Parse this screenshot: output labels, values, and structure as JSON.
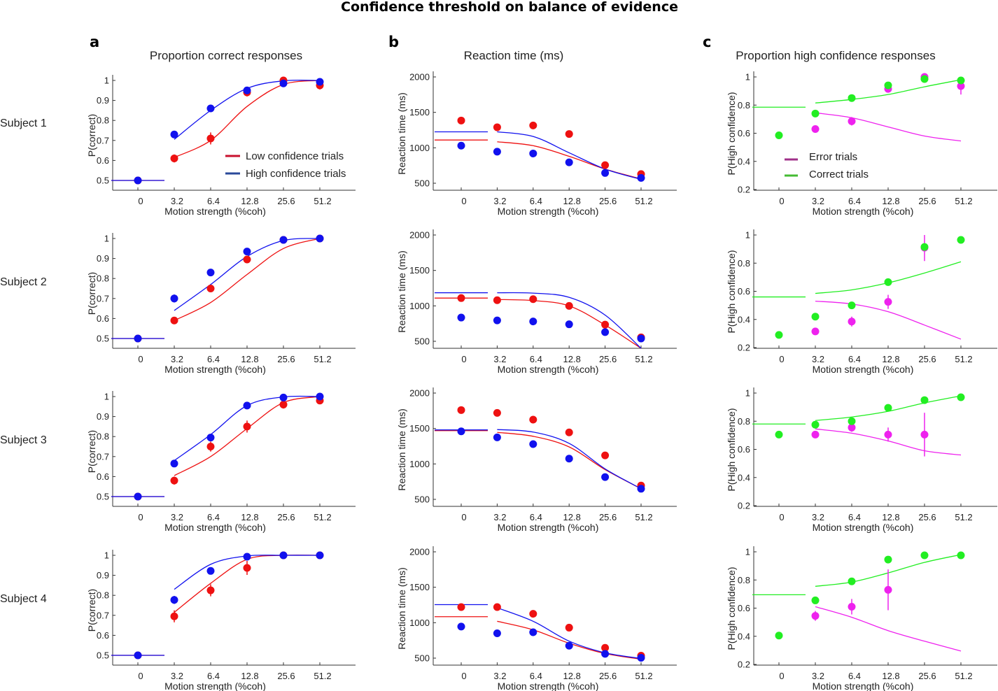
{
  "figure": {
    "title": "Confidence threshold on balance of evidence",
    "columns": [
      {
        "letter": "a",
        "title": "Proportion correct responses"
      },
      {
        "letter": "b",
        "title": "Reaction time (ms)"
      },
      {
        "letter": "c",
        "title": "Proportion high confidence responses"
      }
    ],
    "subjects": [
      "Subject 1",
      "Subject 2",
      "Subject 3",
      "Subject 4"
    ],
    "colors": {
      "low_conf": "#ee1111",
      "high_conf": "#1111ee",
      "low_conf_legend": "#c8102e",
      "high_conf_legend": "#2a4a9a",
      "error": "#ee22ee",
      "correct": "#22ee22",
      "error_legend": "#a0308a",
      "correct_legend": "#44bb33",
      "axis": "#333333"
    }
  },
  "chart_data": [
    {
      "type": "scatter",
      "column": "a",
      "title": "Proportion correct responses",
      "xlabel": "Motion strength (%coh)",
      "ylabel": "P(correct)",
      "categories": [
        "0",
        "3.2",
        "6.4",
        "12.8",
        "25.6",
        "51.2"
      ],
      "ylim": [
        0.45,
        1.02
      ],
      "yticks": [
        "0.5",
        "0.6",
        "0.7",
        "0.8",
        "0.9",
        "1"
      ],
      "ytick_values": [
        0.5,
        0.6,
        0.7,
        0.8,
        0.9,
        1.0
      ],
      "legend": [
        "Low confidence trials",
        "High confidence trials"
      ],
      "legend_placement": "lower-right (Subject 1 only)",
      "subjects": [
        {
          "name": "Subject 1",
          "low": {
            "points": [
              0.5,
              0.61,
              0.71,
              0.94,
              1.0,
              0.975
            ],
            "err": [
              0,
              0.02,
              0.03,
              0.02,
              0,
              0.02
            ],
            "fit0": 0.5,
            "fit": [
              0.615,
              0.7,
              0.87,
              0.98,
              1.0
            ]
          },
          "high": {
            "points": [
              0.5,
              0.73,
              0.86,
              0.95,
              0.985,
              0.993
            ],
            "err": [
              0,
              0.01,
              0.01,
              0.01,
              0.005,
              0.005
            ],
            "fit0": 0.5,
            "fit": [
              0.705,
              0.85,
              0.96,
              0.998,
              1.0
            ]
          }
        },
        {
          "name": "Subject 2",
          "low": {
            "points": [
              0.5,
              0.59,
              0.75,
              0.895,
              0.993,
              1.0
            ],
            "err": [
              0,
              0.01,
              0.01,
              0.01,
              0.005,
              0
            ],
            "fit0": 0.5,
            "fit": [
              0.59,
              0.68,
              0.82,
              0.95,
              1.0
            ]
          },
          "high": {
            "points": [
              0.5,
              0.7,
              0.83,
              0.935,
              0.993,
              1.0
            ],
            "err": [
              0,
              0.02,
              0.01,
              0.01,
              0.005,
              0
            ],
            "fit0": 0.5,
            "fit": [
              0.64,
              0.77,
              0.91,
              0.99,
              1.0
            ]
          }
        },
        {
          "name": "Subject 3",
          "low": {
            "points": [
              0.5,
              0.58,
              0.75,
              0.85,
              0.96,
              0.98
            ],
            "err": [
              0,
              0.02,
              0.025,
              0.03,
              0.02,
              0.015
            ],
            "fit0": 0.5,
            "fit": [
              0.605,
              0.7,
              0.84,
              0.97,
              1.0
            ]
          },
          "high": {
            "points": [
              0.5,
              0.665,
              0.795,
              0.955,
              0.995,
              1.0
            ],
            "err": [
              0,
              0.01,
              0.01,
              0.005,
              0.005,
              0
            ],
            "fit0": 0.5,
            "fit": [
              0.68,
              0.81,
              0.955,
              0.998,
              1.0
            ]
          }
        },
        {
          "name": "Subject 4",
          "low": {
            "points": [
              0.5,
              0.695,
              0.825,
              0.937,
              1.0,
              1.0
            ],
            "err": [
              0,
              0.03,
              0.03,
              0.035,
              0,
              0
            ],
            "fit0": 0.5,
            "fit": [
              0.715,
              0.86,
              0.98,
              1.0,
              1.0
            ]
          },
          "high": {
            "points": [
              0.5,
              0.777,
              0.922,
              0.993,
              1.0,
              1.0
            ],
            "err": [
              0,
              0.02,
              0.01,
              0.005,
              0,
              0
            ],
            "fit0": 0.5,
            "fit": [
              0.83,
              0.955,
              0.997,
              1.0,
              1.0
            ]
          }
        }
      ]
    },
    {
      "type": "scatter",
      "column": "b",
      "title": "Reaction time (ms)",
      "xlabel": "Motion strength (%coh)",
      "ylabel": "Reaction time (ms)",
      "categories": [
        "0",
        "3.2",
        "6.4",
        "12.8",
        "25.6",
        "51.2"
      ],
      "ylim": [
        400,
        2000
      ],
      "yticks": [
        "500",
        "1000",
        "1500",
        "2000"
      ],
      "ytick_values": [
        500,
        1000,
        1500,
        2000
      ],
      "legend": [
        "Low confidence trials",
        "High confidence trials"
      ],
      "subjects": [
        {
          "name": "Subject 1",
          "low": {
            "points": [
              1385,
              1290,
              1315,
              1195,
              755,
              630
            ],
            "err": [
              0,
              0,
              0,
              0,
              0,
              0
            ],
            "fit0": 1110,
            "fit": [
              1085,
              1030,
              880,
              700,
              560
            ]
          },
          "high": {
            "points": [
              1030,
              945,
              920,
              795,
              645,
              575
            ],
            "err": [
              0,
              0,
              0,
              0,
              0,
              0
            ],
            "fit0": 1225,
            "fit": [
              1225,
              1160,
              930,
              700,
              555
            ]
          }
        },
        {
          "name": "Subject 2",
          "low": {
            "points": [
              1110,
              1080,
              1095,
              1000,
              735,
              555
            ],
            "err": [
              0,
              0,
              0,
              0,
              0,
              0
            ],
            "fit0": 1110,
            "fit": [
              1090,
              1075,
              1000,
              730,
              300
            ]
          },
          "high": {
            "points": [
              835,
              795,
              780,
              740,
              630,
              540
            ],
            "err": [
              0,
              0,
              0,
              0,
              0,
              0
            ],
            "fit0": 1185,
            "fit": [
              1185,
              1180,
              1120,
              870,
              380
            ]
          }
        },
        {
          "name": "Subject 3",
          "low": {
            "points": [
              1760,
              1720,
              1625,
              1445,
              1120,
              695
            ],
            "err": [
              0,
              0,
              0,
              0,
              50,
              0
            ],
            "fit0": 1470,
            "fit": [
              1445,
              1390,
              1240,
              920,
              650
            ]
          },
          "high": {
            "points": [
              1460,
              1375,
              1280,
              1075,
              815,
              650
            ],
            "err": [
              0,
              0,
              0,
              0,
              0,
              0
            ],
            "fit0": 1480,
            "fit": [
              1485,
              1450,
              1290,
              930,
              650
            ]
          }
        },
        {
          "name": "Subject 4",
          "low": {
            "points": [
              1220,
              1220,
              1125,
              930,
              645,
              535
            ],
            "err": [
              0,
              0,
              0,
              0,
              0,
              0
            ],
            "fit0": 1085,
            "fit": [
              1020,
              900,
              710,
              565,
              485
            ]
          },
          "high": {
            "points": [
              945,
              850,
              865,
              675,
              560,
              505
            ],
            "err": [
              0,
              0,
              0,
              0,
              0,
              0
            ],
            "fit0": 1255,
            "fit": [
              1210,
              1020,
              740,
              575,
              495
            ]
          }
        }
      ]
    },
    {
      "type": "scatter",
      "column": "c",
      "title": "Proportion high confidence responses",
      "xlabel": "Motion strength (%coh)",
      "ylabel": "P(High confidence)",
      "categories": [
        "0",
        "3.2",
        "6.4",
        "12.8",
        "25.6",
        "51.2"
      ],
      "ylim": [
        0.2,
        1.0
      ],
      "yticks": [
        "0.2",
        "0.4",
        "0.6",
        "0.8",
        "1"
      ],
      "ytick_values": [
        0.2,
        0.4,
        0.6,
        0.8,
        1.0
      ],
      "legend": [
        "Error trials",
        "Correct trials"
      ],
      "legend_placement": "lower-left (Subject 1 only)",
      "subjects": [
        {
          "name": "Subject 1",
          "error": {
            "points": [
              null,
              0.63,
              0.685,
              0.915,
              1.0,
              0.935
            ],
            "err": [
              0,
              0.02,
              0.03,
              0.02,
              0,
              0.06
            ],
            "fit": [
              0.745,
              0.71,
              0.645,
              0.58,
              0.545
            ]
          },
          "correct": {
            "points": [
              0.585,
              0.74,
              0.85,
              0.94,
              0.985,
              0.975
            ],
            "err": [
              0,
              0,
              0,
              0,
              0,
              0
            ],
            "fit0": 0.785,
            "fit": [
              0.815,
              0.84,
              0.875,
              0.93,
              0.98
            ]
          }
        },
        {
          "name": "Subject 2",
          "error": {
            "points": [
              null,
              0.315,
              0.385,
              0.525,
              0.91,
              null
            ],
            "err": [
              0,
              0.01,
              0.035,
              0.05,
              0.095,
              0
            ],
            "fit": [
              0.53,
              0.51,
              0.455,
              0.36,
              0.26
            ]
          },
          "correct": {
            "points": [
              0.29,
              0.42,
              0.5,
              0.665,
              0.915,
              0.965
            ],
            "err": [
              0,
              0,
              0,
              0,
              0,
              0
            ],
            "fit0": 0.56,
            "fit": [
              0.585,
              0.61,
              0.66,
              0.73,
              0.81
            ]
          }
        },
        {
          "name": "Subject 3",
          "error": {
            "points": [
              null,
              0.705,
              0.755,
              0.705,
              0.705,
              null
            ],
            "err": [
              0,
              0.02,
              0.03,
              0.05,
              0.155,
              0
            ],
            "fit": [
              0.745,
              0.715,
              0.66,
              0.59,
              0.56
            ]
          },
          "correct": {
            "points": [
              0.705,
              0.775,
              0.8,
              0.895,
              0.95,
              0.97
            ],
            "err": [
              0,
              0,
              0,
              0,
              0,
              0
            ],
            "fit0": 0.78,
            "fit": [
              0.805,
              0.83,
              0.87,
              0.93,
              0.98
            ]
          }
        },
        {
          "name": "Subject 4",
          "error": {
            "points": [
              null,
              0.545,
              0.61,
              0.73,
              null,
              null
            ],
            "err": [
              0,
              0.035,
              0.055,
              0.145,
              0,
              0
            ],
            "fit": [
              0.61,
              0.535,
              0.44,
              0.365,
              0.295
            ]
          },
          "correct": {
            "points": [
              0.405,
              0.655,
              0.79,
              0.945,
              0.975,
              0.975
            ],
            "err": [
              0,
              0,
              0,
              0,
              0,
              0
            ],
            "fit0": 0.695,
            "fit": [
              0.755,
              0.785,
              0.85,
              0.925,
              0.98
            ]
          }
        }
      ]
    }
  ]
}
